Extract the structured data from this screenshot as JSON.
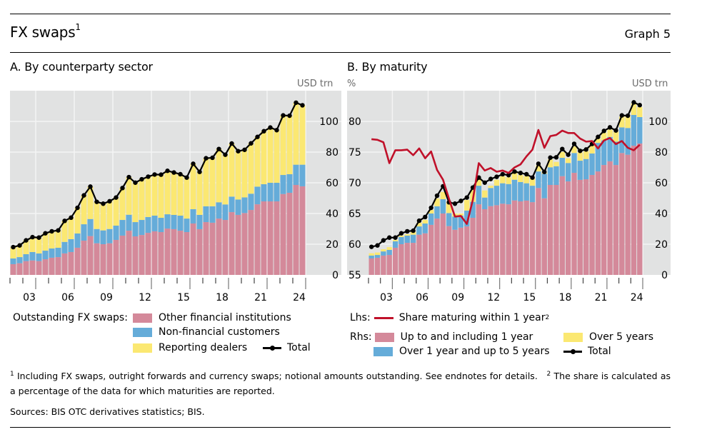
{
  "header": {
    "title": "FX swaps",
    "title_footnote": "1",
    "graph_label": "Graph 5"
  },
  "colors": {
    "other_financial": "#d4899a",
    "non_financial": "#65acd9",
    "reporting_dealers": "#fbe872",
    "total_line": "#000000",
    "share_line": "#c0112a",
    "plot_bg": "#e1e2e2",
    "grid": "#f4f4f4"
  },
  "chart_data": [
    {
      "type": "bar",
      "stacked": true,
      "title": "A. By counterparty sector",
      "ylabel_right": "USD trn",
      "ylim": [
        0,
        120
      ],
      "yticks": [
        0,
        20,
        40,
        60,
        80,
        100
      ],
      "xtick_labels": [
        "03",
        "06",
        "09",
        "12",
        "15",
        "18",
        "21",
        "24"
      ],
      "x_start_year": 2002,
      "x_end_year": 2025,
      "periods_per_year": 2,
      "grid": true,
      "legend_title": "Outstanding FX swaps:",
      "series": [
        {
          "name": "Other financial institutions",
          "color_key": "other_financial",
          "values": [
            7,
            7.6,
            9,
            9.4,
            9,
            10.2,
            11.2,
            11.6,
            14,
            14.9,
            17.7,
            22.3,
            25.3,
            20.6,
            20,
            20.6,
            22.8,
            25.6,
            28.8,
            25.1,
            26,
            27.4,
            28.4,
            27.9,
            30.2,
            29.8,
            28.8,
            27.9,
            33.5,
            29.8,
            34.4,
            34,
            36.7,
            35.8,
            40.9,
            39.1,
            40.3,
            42.3,
            46,
            47.9,
            47.9,
            47.9,
            52.7,
            53.5,
            58.6,
            57.7
          ]
        },
        {
          "name": "Non-financial customers",
          "color_key": "non_financial",
          "values": [
            3.7,
            4,
            4.5,
            5.5,
            5,
            5.6,
            6,
            6.1,
            7.5,
            8.4,
            9.3,
            10.7,
            11.1,
            9.3,
            9,
            9.3,
            9.3,
            10.2,
            10.4,
            9.3,
            9.8,
            10.3,
            10.2,
            9.3,
            9.3,
            9.3,
            9.8,
            8.8,
            9.3,
            9.3,
            10.3,
            10.7,
            10.6,
            10.1,
            10.1,
            10,
            10.2,
            10.6,
            11.5,
            11.2,
            12.1,
            12.1,
            12.4,
            12.1,
            13.2,
            14.1
          ]
        },
        {
          "name": "Reporting dealers",
          "color_key": "reporting_dealers",
          "values": [
            7.4,
            7.6,
            9,
            9.7,
            10.3,
            11.3,
            11.2,
            11.3,
            13.7,
            14,
            16.7,
            18.8,
            21.1,
            17.7,
            17.4,
            18.1,
            18.3,
            20.8,
            24.5,
            25.7,
            26.5,
            26.3,
            26.8,
            28.1,
            28.3,
            27.6,
            27,
            26.7,
            29.6,
            28,
            31.3,
            31.6,
            34.7,
            32.4,
            34.6,
            31.5,
            31,
            32.8,
            32.4,
            34.5,
            36,
            34.3,
            38.8,
            38.1,
            40.4,
            38.7
          ]
        },
        {
          "name": "Total",
          "type": "line",
          "marker": "circle",
          "color_key": "total_line",
          "values": [
            18.1,
            19.2,
            22.5,
            24.6,
            24.3,
            27.1,
            28.4,
            29,
            35.2,
            37.3,
            43.7,
            51.8,
            57.5,
            47.6,
            46.4,
            48,
            50.4,
            56.6,
            63.7,
            60.1,
            62.3,
            64,
            65.4,
            65.3,
            67.8,
            66.7,
            65.6,
            63.4,
            72.4,
            67.1,
            76,
            76.3,
            82,
            78.3,
            85.6,
            80.6,
            81.5,
            85.7,
            89.9,
            93.6,
            96,
            94.3,
            103.9,
            103.7,
            112.2,
            110.5
          ]
        }
      ]
    },
    {
      "type": "bar",
      "stacked": true,
      "title": "B. By maturity",
      "ylabel_left": "%",
      "ylabel_right": "USD trn",
      "ylim_left": [
        55,
        85
      ],
      "yticks_left": [
        55,
        60,
        65,
        70,
        75,
        80
      ],
      "ylim_right": [
        0,
        120
      ],
      "yticks_right": [
        0,
        20,
        40,
        60,
        80,
        100
      ],
      "xtick_labels": [
        "03",
        "06",
        "09",
        "12",
        "15",
        "18",
        "21",
        "24"
      ],
      "x_start_year": 2002,
      "x_end_year": 2025,
      "periods_per_year": 2,
      "grid": true,
      "legend_lhs_prefix": "Lhs:",
      "legend_rhs_prefix": "Rhs:",
      "series": [
        {
          "name": "Up to and including 1 year",
          "axis": "right",
          "color_key": "other_financial",
          "values": [
            10.7,
            11.2,
            12.6,
            13,
            17.7,
            20,
            20.9,
            20.9,
            26.2,
            27.1,
            32.6,
            36.7,
            40,
            31.8,
            29.4,
            30.8,
            31.6,
            37.2,
            46,
            42.8,
            44.8,
            45.4,
            46.4,
            46,
            48.5,
            47.9,
            48.4,
            47.4,
            56.6,
            49.9,
            58.6,
            58.6,
            64.3,
            60.9,
            66.5,
            61.9,
            62.3,
            65.1,
            67.4,
            71.6,
            74,
            71.6,
            79.4,
            78.3,
            84.2,
            85.6
          ]
        },
        {
          "name": "Over 1 year and up to 5 years",
          "axis": "right",
          "color_key": "non_financial",
          "values": [
            1.9,
            1.8,
            2.7,
            3.3,
            4.2,
            4.7,
            4.7,
            5.3,
            5.4,
            6.4,
            7.4,
            8,
            9.3,
            8.5,
            8.6,
            7.9,
            10.3,
            10.4,
            12.1,
            7.6,
            11.8,
            12.7,
            13.3,
            13.2,
            13.5,
            12.6,
            11.3,
            10.7,
            10.8,
            16,
            11.5,
            12.2,
            12,
            12,
            12.9,
            12.5,
            13.2,
            14,
            18.6,
            16,
            15.9,
            15.2,
            16.7,
            17.4,
            20,
            17.2
          ]
        },
        {
          "name": "Over 5 years",
          "axis": "right",
          "color_key": "reporting_dealers",
          "values": [
            1.5,
            1.6,
            1.4,
            1.8,
            0.9,
            0.9,
            0.9,
            1.8,
            2.4,
            2.3,
            2.3,
            5.1,
            4.7,
            7,
            2,
            1.3,
            6.9,
            7.7,
            4.2,
            4.6,
            1.5,
            3.9,
            4.6,
            4.4,
            4.7,
            4.6,
            4.6,
            4.7,
            3.9,
            0.8,
            5.1,
            2.8,
            3.8,
            3.1,
            4.3,
            5.4,
            5.1,
            5.4,
            3.1,
            5,
            4.7,
            6.5,
            7,
            7.4,
            7.4,
            6.5
          ]
        },
        {
          "name": "Total",
          "type": "line",
          "marker": "circle",
          "axis": "right",
          "color_key": "total_line",
          "values": [
            18.3,
            19.2,
            22.5,
            24.3,
            24.3,
            27.1,
            28.4,
            28.8,
            35.3,
            37.7,
            43.7,
            51.6,
            57.7,
            47.3,
            46.4,
            48.2,
            50.4,
            56.9,
            63.4,
            60.1,
            62.5,
            63.9,
            65.6,
            65,
            67.3,
            66.4,
            65.6,
            63.4,
            72.4,
            67.1,
            76.4,
            76.6,
            82,
            78.3,
            85.4,
            80.8,
            81.7,
            85.3,
            89.9,
            93.8,
            96.1,
            94.1,
            103.9,
            103.7,
            112.4,
            110.6
          ]
        },
        {
          "name": "Share maturing within 1 year",
          "footnote": "2",
          "type": "line",
          "axis": "left",
          "color_key": "share_line",
          "values": [
            77.1,
            77,
            76.6,
            73.2,
            75.3,
            75.3,
            75.4,
            74.5,
            75.6,
            74,
            75.1,
            72.1,
            70.5,
            67.4,
            64.5,
            64.6,
            63.3,
            67.2,
            73.2,
            72,
            72.4,
            71.8,
            72,
            71.6,
            72.5,
            73,
            74.3,
            75.4,
            78.6,
            75.7,
            77.6,
            77.8,
            78.5,
            78.1,
            78.1,
            77.2,
            76.7,
            76.8,
            75.6,
            76.9,
            77.3,
            76.3,
            76.8,
            75.7,
            75.3,
            76.2
          ]
        }
      ]
    }
  ],
  "legend_a": {
    "title": "Outstanding FX swaps:",
    "items": [
      "Other financial institutions",
      "Non-financial customers",
      "Reporting dealers",
      "Total"
    ]
  },
  "legend_b": {
    "lhs": "Lhs:",
    "rhs": "Rhs:",
    "share": "Share maturing within 1 year",
    "share_fn": "2",
    "items": [
      "Up to and including 1 year",
      "Over 1 year and up to 5 years",
      "Over 5 years",
      "Total"
    ]
  },
  "notes": {
    "fn1_mark": "1",
    "fn1": "Including FX swaps, outright forwards and currency swaps; notional amounts outstanding. See endnotes for details.",
    "fn2_mark": "2",
    "fn2": "The share is calculated as a percentage of the data for which maturities are reported.",
    "sources": "Sources: BIS OTC derivatives statistics; BIS."
  }
}
